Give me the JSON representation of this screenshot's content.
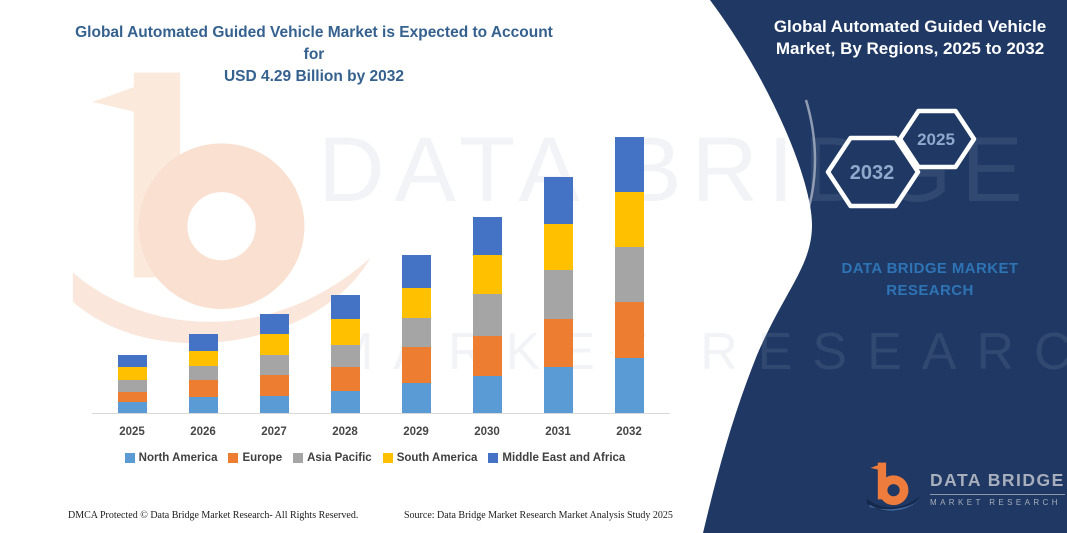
{
  "left_panel": {
    "title_line1": "Global Automated Guided Vehicle Market is Expected to Account for",
    "title_line2": "USD 4.29 Billion by 2032"
  },
  "right_panel": {
    "title_line1": "Global Automated Guided Vehicle",
    "title_line2": "Market, By Regions, 2025 to 2032",
    "hexagons": {
      "back": "2032",
      "front": "2025"
    },
    "brand_line1": "DATA BRIDGE MARKET",
    "brand_line2": "RESEARCH",
    "logo": {
      "name": "DATA BRIDGE",
      "tagline": "MARKET RESEARCH"
    }
  },
  "watermark": {
    "row1": "DATA BRIDGE",
    "row2": "MARKET RESEARCH"
  },
  "footer": {
    "dmca": "DMCA Protected © Data Bridge Market Research-  All Rights Reserved.",
    "source": "Source: Data Bridge Market Research  Market Analysis Study 2025"
  },
  "chart_data": {
    "type": "bar",
    "stacked": true,
    "title": "Global Automated Guided Vehicle Market is Expected to Account for USD 4.29 Billion by 2032",
    "unit": "USD Billion",
    "categories": [
      "2025",
      "2026",
      "2027",
      "2028",
      "2029",
      "2030",
      "2031",
      "2032"
    ],
    "series": [
      {
        "name": "North America",
        "color": "#5B9BD5",
        "values": [
          0.18,
          0.27,
          0.28,
          0.36,
          0.48,
          0.59,
          0.72,
          0.87
        ]
      },
      {
        "name": "Europe",
        "color": "#ED7D31",
        "values": [
          0.16,
          0.26,
          0.32,
          0.37,
          0.56,
          0.61,
          0.75,
          0.86
        ]
      },
      {
        "name": "Asia Pacific",
        "color": "#A5A5A5",
        "values": [
          0.19,
          0.22,
          0.32,
          0.34,
          0.44,
          0.66,
          0.75,
          0.85
        ]
      },
      {
        "name": "South America",
        "color": "#FFC000",
        "values": [
          0.2,
          0.23,
          0.32,
          0.4,
          0.47,
          0.59,
          0.72,
          0.86
        ]
      },
      {
        "name": "Middle East and Africa",
        "color": "#4472C4",
        "values": [
          0.19,
          0.26,
          0.3,
          0.37,
          0.5,
          0.59,
          0.73,
          0.85
        ]
      }
    ],
    "totals_usd_billion": [
      0.92,
      1.24,
      1.54,
      1.84,
      2.45,
      3.04,
      3.67,
      4.29
    ],
    "highlight_total": {
      "year": "2032",
      "value_usd_billion": 4.29
    },
    "legend_position": "bottom",
    "grid": false,
    "y_axis_visible": false
  },
  "colors": {
    "navy_panel": "#1F3864",
    "brand_blue": "#2E74B5",
    "title_blue": "#35618F",
    "axis_line": "#D9D9D9",
    "logo_orange": "#EE7C3C",
    "logo_text_gray": "#A7AEBC"
  }
}
